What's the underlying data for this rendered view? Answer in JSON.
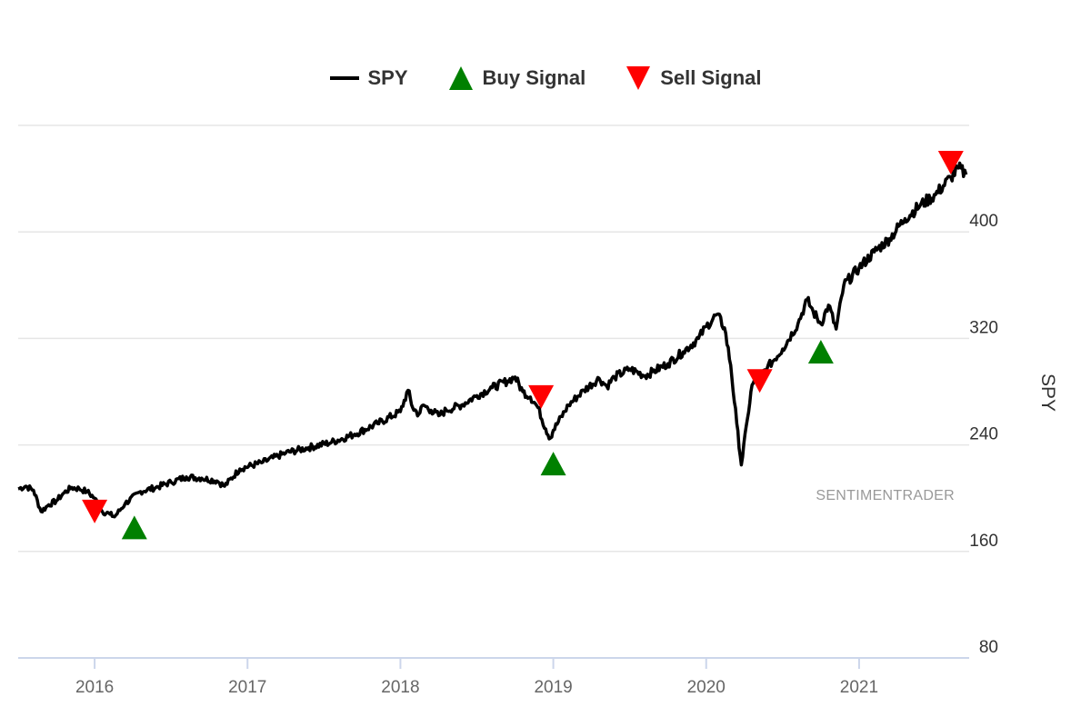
{
  "legend": {
    "spy_label": "SPY",
    "buy_label": "Buy Signal",
    "sell_label": "Sell Signal"
  },
  "watermark": "SENTIMENTRADER",
  "colors": {
    "line": "#000000",
    "buy": "#008000",
    "sell": "#ff0000",
    "grid": "#e6e6e6",
    "axis": "#ccd6eb"
  },
  "chart_data": {
    "type": "line",
    "title": "",
    "ylabel": "SPY",
    "xlabel": "",
    "ylim": [
      80,
      480
    ],
    "yticks": [
      80,
      160,
      240,
      320,
      400
    ],
    "xlim": [
      2015.5,
      2021.72
    ],
    "xticks": [
      2016,
      2017,
      2018,
      2019,
      2020,
      2021
    ],
    "grid": true,
    "legend_position": "top-center",
    "series": [
      {
        "name": "SPY",
        "x": [
          2015.5,
          2015.55,
          2015.6,
          2015.65,
          2015.7,
          2015.75,
          2015.8,
          2015.85,
          2015.9,
          2015.95,
          2016.0,
          2016.05,
          2016.1,
          2016.13,
          2016.2,
          2016.3,
          2016.4,
          2016.5,
          2016.6,
          2016.7,
          2016.8,
          2016.85,
          2016.95,
          2017.1,
          2017.25,
          2017.4,
          2017.55,
          2017.7,
          2017.85,
          2018.0,
          2018.05,
          2018.08,
          2018.12,
          2018.15,
          2018.2,
          2018.25,
          2018.3,
          2018.4,
          2018.5,
          2018.6,
          2018.7,
          2018.75,
          2018.8,
          2018.85,
          2018.9,
          2018.95,
          2018.98,
          2019.0,
          2019.1,
          2019.2,
          2019.3,
          2019.35,
          2019.4,
          2019.5,
          2019.6,
          2019.65,
          2019.75,
          2019.85,
          2019.95,
          2020.0,
          2020.07,
          2020.12,
          2020.16,
          2020.2,
          2020.23,
          2020.27,
          2020.3,
          2020.4,
          2020.5,
          2020.6,
          2020.66,
          2020.7,
          2020.75,
          2020.8,
          2020.85,
          2020.9,
          2021.0,
          2021.1,
          2021.2,
          2021.3,
          2021.4,
          2021.5,
          2021.6,
          2021.65,
          2021.7
        ],
        "values": [
          207,
          209,
          206,
          190,
          195,
          198,
          204,
          208,
          207,
          205,
          200,
          190,
          188,
          186,
          196,
          205,
          208,
          212,
          216,
          215,
          213,
          209,
          222,
          227,
          234,
          238,
          242,
          248,
          256,
          265,
          281,
          268,
          263,
          270,
          266,
          262,
          266,
          270,
          277,
          283,
          288,
          291,
          280,
          276,
          268,
          252,
          245,
          251,
          270,
          281,
          290,
          284,
          291,
          297,
          292,
          295,
          301,
          310,
          320,
          329,
          338,
          328,
          300,
          256,
          225,
          260,
          285,
          298,
          312,
          331,
          349,
          340,
          331,
          345,
          327,
          360,
          373,
          385,
          395,
          410,
          420,
          428,
          441,
          448,
          443
        ]
      }
    ],
    "buy_signals": [
      {
        "x": 2016.26,
        "y": 178
      },
      {
        "x": 2019.0,
        "y": 226
      },
      {
        "x": 2020.75,
        "y": 310
      }
    ],
    "sell_signals": [
      {
        "x": 2016.0,
        "y": 190
      },
      {
        "x": 2018.92,
        "y": 276
      },
      {
        "x": 2020.35,
        "y": 288
      },
      {
        "x": 2021.6,
        "y": 452
      }
    ]
  }
}
